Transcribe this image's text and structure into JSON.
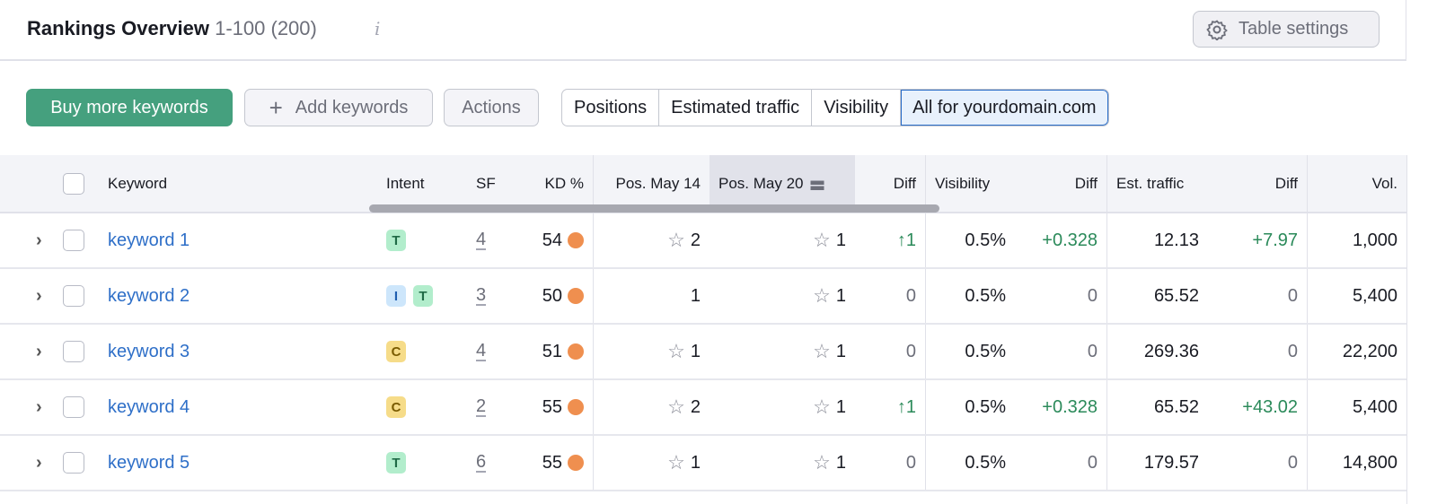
{
  "header": {
    "title": "Rankings Overview",
    "range": "1-100 (200)",
    "info_icon": "info-icon",
    "settings_label": "Table settings"
  },
  "toolbar": {
    "buy": "Buy more keywords",
    "add": "Add keywords",
    "actions": "Actions",
    "views": [
      "Positions",
      "Estimated traffic",
      "Visibility",
      "All for yourdomain.com"
    ],
    "active_view": "All for yourdomain.com"
  },
  "columns": {
    "keyword": "Keyword",
    "intent": "Intent",
    "sf": "SF",
    "kd": "KD %",
    "pos1": "Pos. May 14",
    "pos2": "Pos. May 20",
    "diff": "Diff",
    "visibility": "Visibility",
    "vis_diff": "Diff",
    "traffic": "Est. traffic",
    "traffic_diff": "Diff",
    "vol": "Vol."
  },
  "colors": {
    "accent": "#45a07e",
    "link": "#2e6fc8",
    "positive": "#2b8a5a",
    "kd_dot": "#ef8f4f"
  },
  "rows": [
    {
      "keyword": "keyword 1",
      "intent": [
        "T"
      ],
      "sf": "4",
      "kd": "54",
      "pos1": "2",
      "pos1_star": true,
      "pos2": "1",
      "diff": "↑1",
      "diff_pos": true,
      "vis": "0.5%",
      "vis_diff": "+0.328",
      "vis_pos": true,
      "traffic": "12.13",
      "traffic_diff": "+7.97",
      "traffic_pos": true,
      "vol": "1,000"
    },
    {
      "keyword": "keyword 2",
      "intent": [
        "I",
        "T"
      ],
      "sf": "3",
      "kd": "50",
      "pos1": "1",
      "pos1_star": false,
      "pos2": "1",
      "diff": "0",
      "diff_pos": false,
      "vis": "0.5%",
      "vis_diff": "0",
      "vis_pos": false,
      "traffic": "65.52",
      "traffic_diff": "0",
      "traffic_pos": false,
      "vol": "5,400"
    },
    {
      "keyword": "keyword 3",
      "intent": [
        "C"
      ],
      "sf": "4",
      "kd": "51",
      "pos1": "1",
      "pos1_star": true,
      "pos2": "1",
      "diff": "0",
      "diff_pos": false,
      "vis": "0.5%",
      "vis_diff": "0",
      "vis_pos": false,
      "traffic": "269.36",
      "traffic_diff": "0",
      "traffic_pos": false,
      "vol": "22,200"
    },
    {
      "keyword": "keyword 4",
      "intent": [
        "C"
      ],
      "sf": "2",
      "kd": "55",
      "pos1": "2",
      "pos1_star": true,
      "pos2": "1",
      "diff": "↑1",
      "diff_pos": true,
      "vis": "0.5%",
      "vis_diff": "+0.328",
      "vis_pos": true,
      "traffic": "65.52",
      "traffic_diff": "+43.02",
      "traffic_pos": true,
      "vol": "5,400"
    },
    {
      "keyword": "keyword 5",
      "intent": [
        "T"
      ],
      "sf": "6",
      "kd": "55",
      "pos1": "1",
      "pos1_star": true,
      "pos2": "1",
      "diff": "0",
      "diff_pos": false,
      "vis": "0.5%",
      "vis_diff": "0",
      "vis_pos": false,
      "traffic": "179.57",
      "traffic_diff": "0",
      "traffic_pos": false,
      "vol": "14,800"
    }
  ]
}
